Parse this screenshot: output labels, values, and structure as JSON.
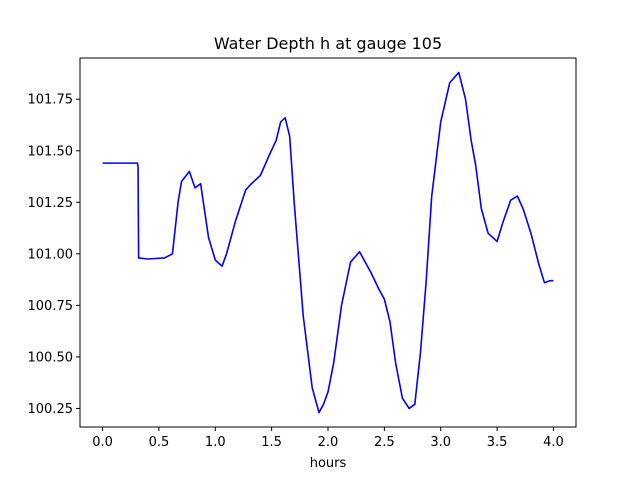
{
  "chart_data": {
    "type": "line",
    "title": "Water Depth h at gauge 105",
    "xlabel": "hours",
    "ylabel": "",
    "xlim": [
      -0.2,
      4.2
    ],
    "ylim": [
      100.16,
      101.95
    ],
    "xticks": [
      0.0,
      0.5,
      1.0,
      1.5,
      2.0,
      2.5,
      3.0,
      3.5,
      4.0
    ],
    "xtick_labels": [
      "0.0",
      "0.5",
      "1.0",
      "1.5",
      "2.0",
      "2.5",
      "3.0",
      "3.5",
      "4.0"
    ],
    "yticks": [
      100.25,
      100.5,
      100.75,
      101.0,
      101.25,
      101.5,
      101.75
    ],
    "ytick_labels": [
      "100.25",
      "100.50",
      "100.75",
      "101.00",
      "101.25",
      "101.50",
      "101.75"
    ],
    "grid": false,
    "series": [
      {
        "color": "#0000ff",
        "x": [
          0.0,
          0.31,
          0.315,
          0.32,
          0.4,
          0.55,
          0.62,
          0.67,
          0.7,
          0.77,
          0.82,
          0.87,
          0.94,
          1.0,
          1.06,
          1.1,
          1.18,
          1.27,
          1.32,
          1.4,
          1.48,
          1.54,
          1.58,
          1.62,
          1.66,
          1.7,
          1.78,
          1.86,
          1.92,
          1.96,
          2.0,
          2.05,
          2.12,
          2.2,
          2.28,
          2.33,
          2.38,
          2.45,
          2.5,
          2.55,
          2.6,
          2.66,
          2.72,
          2.77,
          2.82,
          2.87,
          2.92,
          3.0,
          3.08,
          3.16,
          3.22,
          3.27,
          3.31,
          3.36,
          3.42,
          3.5,
          3.55,
          3.62,
          3.68,
          3.73,
          3.8,
          3.87,
          3.92,
          3.97,
          4.0
        ],
        "y": [
          101.44,
          101.44,
          101.42,
          100.98,
          100.975,
          100.98,
          101.0,
          101.25,
          101.35,
          101.4,
          101.32,
          101.34,
          101.08,
          100.97,
          100.94,
          101.0,
          101.16,
          101.31,
          101.34,
          101.38,
          101.48,
          101.55,
          101.64,
          101.66,
          101.57,
          101.25,
          100.7,
          100.35,
          100.23,
          100.27,
          100.33,
          100.47,
          100.75,
          100.96,
          101.01,
          100.96,
          100.91,
          100.83,
          100.78,
          100.67,
          100.47,
          100.3,
          100.25,
          100.27,
          100.52,
          100.86,
          101.28,
          101.64,
          101.83,
          101.88,
          101.75,
          101.55,
          101.43,
          101.22,
          101.1,
          101.06,
          101.15,
          101.26,
          101.28,
          101.22,
          101.1,
          100.95,
          100.86,
          100.87,
          100.87
        ]
      }
    ]
  }
}
